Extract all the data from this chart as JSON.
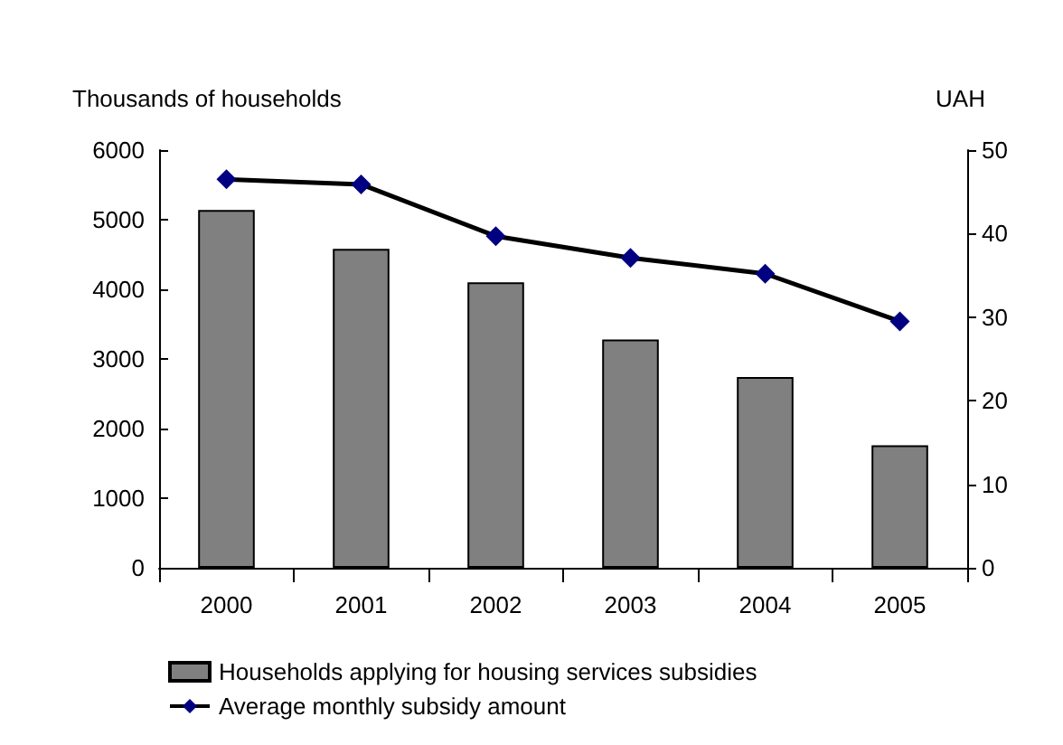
{
  "chart_data": {
    "type": "bar",
    "ylabel": "Thousands of households",
    "y2label": "UAH",
    "categories": [
      "2000",
      "2001",
      "2002",
      "2003",
      "2004",
      "2005"
    ],
    "series": [
      {
        "name": "Households applying for housing services subsidies",
        "color": "#808080",
        "values": [
          5140,
          4580,
          4100,
          3280,
          2740,
          1760
        ]
      },
      {
        "name": "Average monthly subsidy amount",
        "type": "line",
        "axis": "y2",
        "color": "#000080",
        "values": [
          46.5,
          45.9,
          39.7,
          37.1,
          35.2,
          29.5
        ]
      }
    ],
    "ylim": [
      0,
      6000
    ],
    "yticks": [
      0,
      1000,
      2000,
      3000,
      4000,
      5000,
      6000
    ],
    "y2lim": [
      0,
      50
    ],
    "y2ticks": [
      0,
      10,
      20,
      30,
      40,
      50
    ],
    "grid": false,
    "legend": "bottom",
    "marker": "diamond",
    "line_style": "solid"
  }
}
